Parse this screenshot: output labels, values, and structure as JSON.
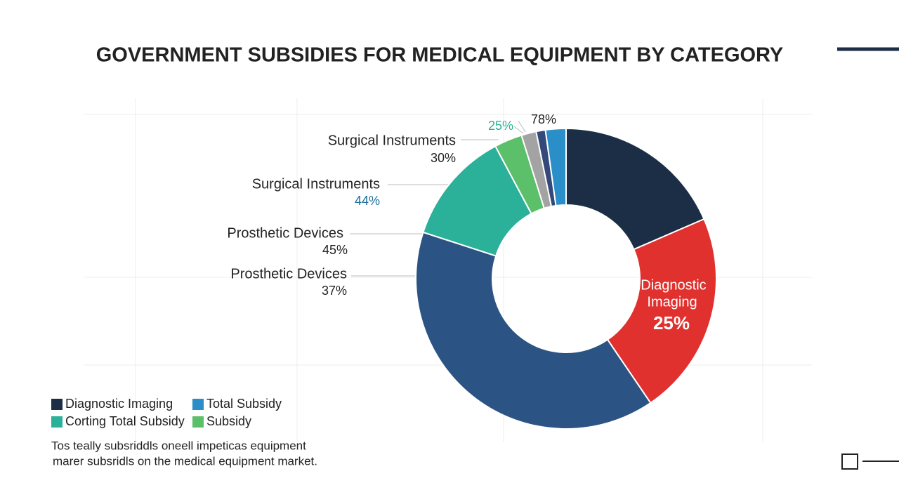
{
  "chart_data": {
    "type": "donut",
    "title": "GOVERNMENT SUBSIDIES FOR MEDICAL EQUIPMENT BY CATEGORY",
    "values": [
      18.5,
      22,
      39.5,
      12.2,
      3,
      1.6,
      1,
      2.2
    ],
    "colors": [
      "#1c2e45",
      "#e0312f",
      "#2b5383",
      "#2bb09a",
      "#5cbf6a",
      "#a3a3a3",
      "#34497a",
      "#2a8fc8"
    ],
    "annotations": [
      {
        "text": "78%",
        "color": "#222222"
      },
      {
        "text": "25%",
        "color": "#2bb09a"
      },
      {
        "text": "Surgical Instruments",
        "color": "#222222"
      },
      {
        "text": "30%",
        "color": "#222222"
      },
      {
        "text": "Surgical Instruments",
        "color": "#222222"
      },
      {
        "text": "44%",
        "color": "#1a6f96"
      },
      {
        "text": "Prosthetic Devices",
        "color": "#222222"
      },
      {
        "text": "45%",
        "color": "#222222"
      },
      {
        "text": "Prosthetic Devices",
        "color": "#222222"
      },
      {
        "text": "37%",
        "color": "#222222"
      },
      {
        "text": "Diagnostic",
        "color": "#ffffff"
      },
      {
        "text": "Imaging",
        "color": "#ffffff"
      },
      {
        "text": "25%",
        "color": "#ffffff"
      }
    ],
    "legend": [
      {
        "name": "Diagnostic Imaging",
        "color": "#1c2e45"
      },
      {
        "name": "Total Subsidy",
        "color": "#2a8fc8"
      },
      {
        "name": "Corting Total Subsidy",
        "color": "#2bb09a"
      },
      {
        "name": "Subsidy",
        "color": "#5cbf6a"
      }
    ],
    "note": [
      "Tos teally subsriddls oneell impeticas equipment",
      "marer subsridls on the medical equipment market."
    ]
  }
}
